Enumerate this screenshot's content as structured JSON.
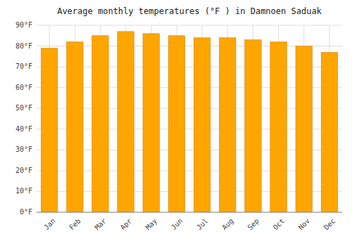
{
  "chart_data": {
    "type": "bar",
    "title": "Average monthly temperatures (°F ) in Damnoen Saduak",
    "categories": [
      "Jan",
      "Feb",
      "Mar",
      "Apr",
      "May",
      "Jun",
      "Jul",
      "Aug",
      "Sep",
      "Oct",
      "Nov",
      "Dec"
    ],
    "values": [
      79,
      82,
      85,
      87,
      86,
      85,
      84,
      84,
      83,
      82,
      80,
      77
    ],
    "color": "#FFA500",
    "ylim": [
      0,
      90
    ],
    "yticks": [
      {
        "value": 0,
        "label": "0°F"
      },
      {
        "value": 10,
        "label": "10°F"
      },
      {
        "value": 20,
        "label": "20°F"
      },
      {
        "value": 30,
        "label": "30°F"
      },
      {
        "value": 40,
        "label": "40°F"
      },
      {
        "value": 50,
        "label": "50°F"
      },
      {
        "value": 60,
        "label": "60°F"
      },
      {
        "value": 70,
        "label": "70°F"
      },
      {
        "value": 80,
        "label": "80°F"
      },
      {
        "value": 90,
        "label": "90°F"
      }
    ],
    "grid": true
  }
}
